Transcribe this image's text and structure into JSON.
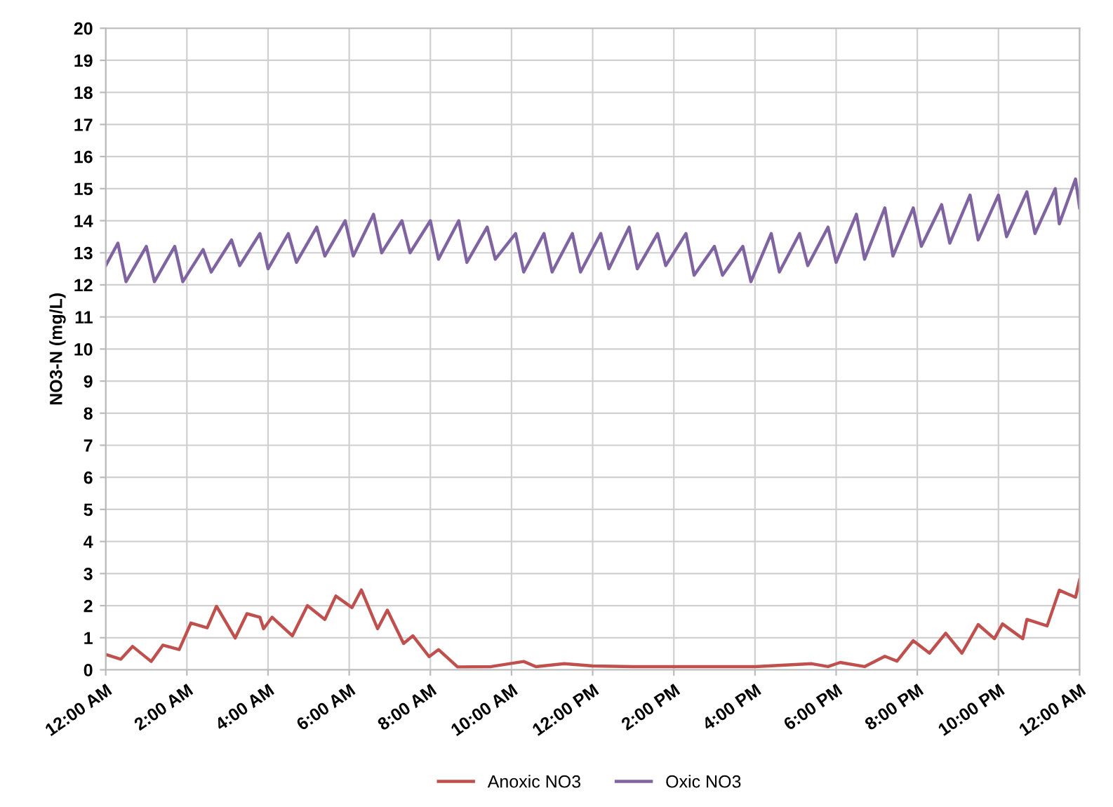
{
  "chart_data": {
    "type": "line",
    "ylabel": "NO3-N (mg/L)",
    "xlim": [
      0,
      24
    ],
    "xticks": [
      {
        "value": 0,
        "label": "12:00 AM"
      },
      {
        "value": 2,
        "label": "2:00 AM"
      },
      {
        "value": 4,
        "label": "4:00 AM"
      },
      {
        "value": 6,
        "label": "6:00 AM"
      },
      {
        "value": 8,
        "label": "8:00 AM"
      },
      {
        "value": 10,
        "label": "10:00 AM"
      },
      {
        "value": 12,
        "label": "12:00 PM"
      },
      {
        "value": 14,
        "label": "2:00 PM"
      },
      {
        "value": 16,
        "label": "4:00 PM"
      },
      {
        "value": 18,
        "label": "6:00 PM"
      },
      {
        "value": 20,
        "label": "8:00 PM"
      },
      {
        "value": 22,
        "label": "10:00 PM"
      },
      {
        "value": 24,
        "label": "12:00 AM"
      }
    ],
    "ylim": [
      0,
      20
    ],
    "yticks": [
      0,
      1,
      2,
      3,
      4,
      5,
      6,
      7,
      8,
      9,
      10,
      11,
      12,
      13,
      14,
      15,
      16,
      17,
      18,
      19,
      20
    ],
    "grid": true,
    "legend": "bottom",
    "marker": "none",
    "line_style": "solid",
    "series": [
      {
        "name": "Anoxic NO3",
        "color": "#c0504d",
        "x": [
          0,
          0.37,
          0.66,
          1.12,
          1.41,
          1.81,
          2.1,
          2.5,
          2.73,
          3.19,
          3.48,
          3.8,
          3.89,
          4.1,
          4.6,
          4.97,
          5.4,
          5.67,
          6.07,
          6.3,
          6.7,
          6.94,
          7.34,
          7.57,
          7.97,
          8.2,
          8.67,
          9.5,
          10.3,
          10.6,
          11.3,
          12.0,
          13,
          14,
          15,
          16,
          17.4,
          17.8,
          18.1,
          18.7,
          19.2,
          19.5,
          19.9,
          20.3,
          20.7,
          21.1,
          21.5,
          21.9,
          22.1,
          22.6,
          22.7,
          23.2,
          23.5,
          23.9,
          24
        ],
        "values": [
          0.48,
          0.33,
          0.73,
          0.26,
          0.77,
          0.63,
          1.46,
          1.31,
          1.98,
          0.99,
          1.75,
          1.64,
          1.28,
          1.64,
          1.06,
          2.0,
          1.57,
          2.3,
          1.94,
          2.49,
          1.28,
          1.86,
          0.82,
          1.06,
          0.41,
          0.63,
          0.09,
          0.1,
          0.26,
          0.1,
          0.19,
          0.12,
          0.1,
          0.1,
          0.1,
          0.1,
          0.19,
          0.1,
          0.23,
          0.1,
          0.42,
          0.27,
          0.91,
          0.52,
          1.14,
          0.52,
          1.41,
          0.97,
          1.43,
          0.97,
          1.57,
          1.37,
          2.48,
          2.26,
          2.8
        ]
      },
      {
        "name": "Oxic NO3",
        "color": "#8064a2",
        "x": [
          0,
          0.3,
          0.5,
          1.0,
          1.2,
          1.7,
          1.9,
          2.4,
          2.6,
          3.1,
          3.3,
          3.8,
          4.0,
          4.5,
          4.7,
          5.2,
          5.4,
          5.9,
          6.1,
          6.6,
          6.8,
          7.3,
          7.5,
          8.0,
          8.2,
          8.7,
          8.9,
          9.4,
          9.6,
          10.1,
          10.3,
          10.8,
          11.0,
          11.5,
          11.7,
          12.2,
          12.4,
          12.9,
          13.1,
          13.6,
          13.8,
          14.3,
          14.5,
          15.0,
          15.2,
          15.7,
          15.9,
          16.4,
          16.6,
          17.1,
          17.3,
          17.8,
          18.0,
          18.5,
          18.7,
          19.2,
          19.4,
          19.9,
          20.1,
          20.6,
          20.8,
          21.3,
          21.5,
          22.0,
          22.2,
          22.7,
          22.9,
          23.4,
          23.5,
          23.9,
          24
        ],
        "values": [
          12.6,
          13.3,
          12.1,
          13.2,
          12.1,
          13.2,
          12.1,
          13.1,
          12.4,
          13.4,
          12.6,
          13.6,
          12.5,
          13.6,
          12.7,
          13.8,
          12.9,
          14.0,
          12.9,
          14.2,
          13.0,
          14.0,
          13.0,
          14.0,
          12.8,
          14.0,
          12.7,
          13.8,
          12.8,
          13.6,
          12.4,
          13.6,
          12.4,
          13.6,
          12.4,
          13.6,
          12.5,
          13.8,
          12.5,
          13.6,
          12.6,
          13.6,
          12.3,
          13.2,
          12.3,
          13.2,
          12.1,
          13.6,
          12.4,
          13.6,
          12.6,
          13.8,
          12.7,
          14.2,
          12.8,
          14.4,
          12.9,
          14.4,
          13.2,
          14.5,
          13.3,
          14.8,
          13.4,
          14.8,
          13.5,
          14.9,
          13.6,
          15.0,
          13.9,
          15.3,
          14.4
        ]
      }
    ]
  }
}
